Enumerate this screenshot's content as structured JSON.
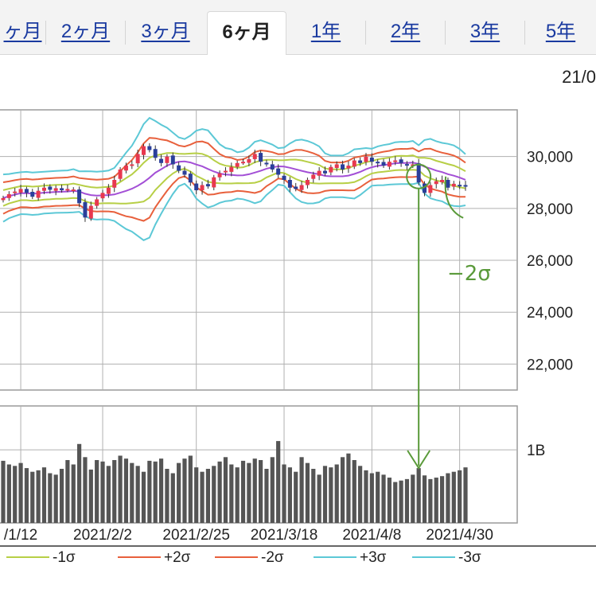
{
  "tabs": [
    {
      "label": "ヶ月",
      "active": false
    },
    {
      "label": "2ヶ月",
      "active": false
    },
    {
      "label": "3ヶ月",
      "active": false
    },
    {
      "label": "6ヶ月",
      "active": true
    },
    {
      "label": "1年",
      "active": false
    },
    {
      "label": "2年",
      "active": false
    },
    {
      "label": "3年",
      "active": false
    },
    {
      "label": "5年",
      "active": false
    }
  ],
  "range_label": "21/0",
  "colors": {
    "up": "#e8384f",
    "down": "#2a3f9a",
    "ma": "#a34fd6",
    "sigma1": "#b7cf46",
    "sigma2": "#e8603c",
    "sigma3": "#5cc8d6",
    "volume": "#555555",
    "annotation": "#5a9a3a",
    "grid": "#9a9a9a"
  },
  "annotation_label": "−2σ",
  "chart_data": {
    "type": "candlestick",
    "price_axis": {
      "ylim": [
        21000,
        31800
      ],
      "ticks": [
        22000,
        24000,
        26000,
        28000,
        30000
      ],
      "tick_labels": [
        "22,000",
        "24,000",
        "26,000",
        "28,000",
        "30,000"
      ]
    },
    "volume_axis": {
      "ticks_labels": [
        "1B"
      ],
      "tick_values": [
        1.0
      ],
      "ylim": [
        0,
        1.6
      ]
    },
    "x_tick_labels": [
      "/1/12",
      "2021/2/2",
      "2021/2/25",
      "2021/3/18",
      "2021/4/8",
      "2021/4/30"
    ],
    "x_tick_index": [
      3,
      17,
      33,
      48,
      63,
      78
    ],
    "closes": [
      28400,
      28550,
      28650,
      28750,
      28600,
      28450,
      28680,
      28800,
      28720,
      28780,
      28700,
      28750,
      28730,
      28200,
      27650,
      28100,
      28350,
      28600,
      28800,
      29100,
      29500,
      29650,
      29700,
      30100,
      30400,
      30250,
      29950,
      29750,
      30000,
      29700,
      29450,
      29300,
      29000,
      28700,
      28900,
      28850,
      29200,
      29350,
      29450,
      29600,
      29750,
      29800,
      29900,
      30100,
      29800,
      29700,
      29500,
      29300,
      29100,
      28800,
      28750,
      28900,
      29100,
      29300,
      29450,
      29350,
      29600,
      29700,
      29500,
      29650,
      29850,
      29750,
      30000,
      29800,
      29750,
      29650,
      29800,
      29850,
      29750,
      29650,
      29700,
      29000,
      28600,
      28900,
      29050,
      29100,
      28800,
      28950,
      28900,
      28850
    ],
    "volumes": [
      0.85,
      0.8,
      0.78,
      0.82,
      0.75,
      0.7,
      0.72,
      0.76,
      0.68,
      0.66,
      0.74,
      0.86,
      0.8,
      1.08,
      0.9,
      0.73,
      0.86,
      0.84,
      0.78,
      0.86,
      0.92,
      0.88,
      0.82,
      0.78,
      0.7,
      0.85,
      0.84,
      0.88,
      0.74,
      0.68,
      0.82,
      0.88,
      0.92,
      0.76,
      0.7,
      0.74,
      0.78,
      0.84,
      0.9,
      0.8,
      0.76,
      0.85,
      0.82,
      0.88,
      0.86,
      0.74,
      0.9,
      1.12,
      0.8,
      0.76,
      0.7,
      0.9,
      0.82,
      0.74,
      0.66,
      0.78,
      0.76,
      0.8,
      0.9,
      0.95,
      0.86,
      0.78,
      0.72,
      0.68,
      0.7,
      0.66,
      0.62,
      0.56,
      0.58,
      0.6,
      0.66,
      0.75,
      0.65,
      0.6,
      0.62,
      0.64,
      0.68,
      0.7,
      0.72,
      0.76
    ],
    "legend": [
      {
        "name": "-1σ",
        "color_key": "sigma1"
      },
      {
        "name": "+2σ",
        "color_key": "sigma2"
      },
      {
        "name": "-2σ",
        "color_key": "sigma2"
      },
      {
        "name": "+3σ",
        "color_key": "sigma3"
      },
      {
        "name": "-3σ",
        "color_key": "sigma3"
      }
    ],
    "grid": true
  }
}
